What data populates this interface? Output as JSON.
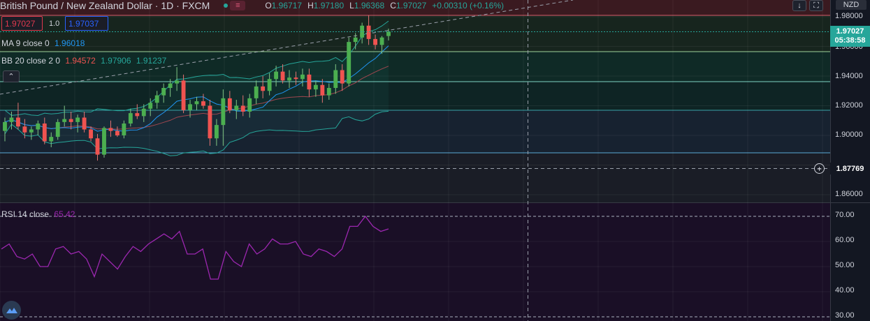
{
  "header": {
    "title": "British Pound / New Zealand Dollar · 1D · FXCM",
    "ohlc": [
      {
        "k": "O",
        "v": "1.96717"
      },
      {
        "k": "H",
        "v": "1.97180"
      },
      {
        "k": "L",
        "v": "1.96368"
      },
      {
        "k": "C",
        "v": "1.97027"
      },
      {
        "k": "",
        "v": "+0.00310 (+0.16%)"
      }
    ]
  },
  "order": {
    "sell": "1.97027",
    "lot": "1.0",
    "buy": "1.97037"
  },
  "indicators": {
    "ma": {
      "label": "MA 9 close 0",
      "value": "1.96018"
    },
    "bb": {
      "label": "BB 20 close 2 0",
      "v1": "1.94572",
      "v2": "1.97906",
      "v3": "1.91237"
    },
    "rsi": {
      "label": "RSI 14 close",
      "value": "65.42"
    }
  },
  "collapse_icon": "chevron-up-icon",
  "top_buttons": [
    "arrow-down-icon",
    "fullscreen-icon"
  ],
  "currency": "NZD",
  "price_axis": {
    "ticks": [
      "1.98000",
      "1.96000",
      "1.94000",
      "1.92000",
      "1.90000",
      "1.86000"
    ],
    "current_price": "1.97027",
    "countdown": "05:38:58",
    "crosshair_price": "1.87769"
  },
  "rsi_axis": {
    "ticks": [
      "70.00",
      "60.00",
      "50.00",
      "40.00",
      "30.00"
    ]
  },
  "colors": {
    "up": "#26a69a",
    "up_bright": "#4caf50",
    "down": "#ef5350",
    "bg": "#131722",
    "rsi": "#9c27b0",
    "bb": "#26a69a",
    "ma": "#2196f3"
  },
  "chart_data": {
    "type": "candlestick",
    "symbol": "GBPNZD",
    "price_range": [
      1.85,
      1.985
    ],
    "candles": [
      [
        1.903,
        1.912,
        1.896,
        1.909
      ],
      [
        1.909,
        1.916,
        1.904,
        1.912
      ],
      [
        1.912,
        1.922,
        1.904,
        1.906
      ],
      [
        1.906,
        1.911,
        1.898,
        1.902
      ],
      [
        1.902,
        1.906,
        1.897,
        1.904
      ],
      [
        1.904,
        1.91,
        1.9,
        1.908
      ],
      [
        1.908,
        1.912,
        1.894,
        1.896
      ],
      [
        1.896,
        1.902,
        1.892,
        1.899
      ],
      [
        1.899,
        1.911,
        1.897,
        1.909
      ],
      [
        1.909,
        1.92,
        1.906,
        1.911
      ],
      [
        1.911,
        1.916,
        1.904,
        1.909
      ],
      [
        1.909,
        1.914,
        1.902,
        1.912
      ],
      [
        1.912,
        1.916,
        1.902,
        1.904
      ],
      [
        1.904,
        1.906,
        1.896,
        1.898
      ],
      [
        1.898,
        1.901,
        1.883,
        1.887
      ],
      [
        1.887,
        1.906,
        1.885,
        1.905
      ],
      [
        1.905,
        1.91,
        1.899,
        1.903
      ],
      [
        1.903,
        1.906,
        1.899,
        1.9
      ],
      [
        1.9,
        1.91,
        1.898,
        1.908
      ],
      [
        1.908,
        1.918,
        1.906,
        1.915
      ],
      [
        1.915,
        1.921,
        1.911,
        1.913
      ],
      [
        1.913,
        1.921,
        1.909,
        1.918
      ],
      [
        1.918,
        1.925,
        1.913,
        1.922
      ],
      [
        1.922,
        1.93,
        1.918,
        1.927
      ],
      [
        1.927,
        1.935,
        1.922,
        1.932
      ],
      [
        1.932,
        1.938,
        1.926,
        1.935
      ],
      [
        1.935,
        1.946,
        1.93,
        1.937
      ],
      [
        1.937,
        1.941,
        1.915,
        1.917
      ],
      [
        1.917,
        1.924,
        1.912,
        1.921
      ],
      [
        1.921,
        1.926,
        1.917,
        1.923
      ],
      [
        1.923,
        1.928,
        1.918,
        1.92
      ],
      [
        1.92,
        1.924,
        1.893,
        1.898
      ],
      [
        1.898,
        1.911,
        1.893,
        1.907
      ],
      [
        1.907,
        1.931,
        1.893,
        1.925
      ],
      [
        1.925,
        1.93,
        1.915,
        1.917
      ],
      [
        1.917,
        1.924,
        1.911,
        1.92
      ],
      [
        1.92,
        1.927,
        1.913,
        1.916
      ],
      [
        1.916,
        1.928,
        1.912,
        1.925
      ],
      [
        1.925,
        1.937,
        1.921,
        1.933
      ],
      [
        1.933,
        1.94,
        1.925,
        1.93
      ],
      [
        1.93,
        1.942,
        1.927,
        1.938
      ],
      [
        1.938,
        1.947,
        1.933,
        1.943
      ],
      [
        1.943,
        1.948,
        1.935,
        1.937
      ],
      [
        1.937,
        1.944,
        1.932,
        1.939
      ],
      [
        1.939,
        1.943,
        1.934,
        1.938
      ],
      [
        1.938,
        1.945,
        1.933,
        1.941
      ],
      [
        1.941,
        1.945,
        1.926,
        1.931
      ],
      [
        1.931,
        1.937,
        1.926,
        1.934
      ],
      [
        1.934,
        1.938,
        1.922,
        1.927
      ],
      [
        1.927,
        1.935,
        1.924,
        1.932
      ],
      [
        1.932,
        1.948,
        1.928,
        1.944
      ],
      [
        1.944,
        1.948,
        1.93,
        1.935
      ],
      [
        1.935,
        1.966,
        1.933,
        1.963
      ],
      [
        1.963,
        1.969,
        1.958,
        1.966
      ],
      [
        1.966,
        1.976,
        1.962,
        1.974
      ],
      [
        1.974,
        1.981,
        1.961,
        1.965
      ],
      [
        1.965,
        1.968,
        1.958,
        1.961
      ],
      [
        1.961,
        1.967,
        1.955,
        1.966
      ],
      [
        1.967,
        1.972,
        1.964,
        1.97
      ]
    ],
    "rsi": [
      57,
      59,
      54,
      53,
      55,
      50,
      50,
      57,
      58,
      55,
      56,
      53,
      46,
      55,
      52,
      49,
      54,
      58,
      56,
      59,
      61,
      63,
      61,
      64,
      55,
      55,
      57,
      45,
      45,
      56,
      52,
      50,
      59,
      55,
      57,
      61,
      59,
      59,
      60,
      55,
      54,
      57,
      56,
      54,
      57,
      66,
      66,
      70,
      66,
      64,
      65
    ]
  }
}
